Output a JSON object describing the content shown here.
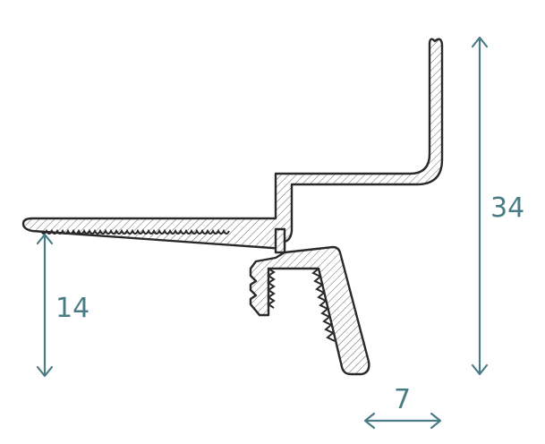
{
  "dimensions": {
    "height_total": "34",
    "height_lower": "14",
    "width_bottom": "7"
  },
  "colors": {
    "dimension": "#4a7c86",
    "outline": "#2a2a2a",
    "hatch": "#555555"
  }
}
